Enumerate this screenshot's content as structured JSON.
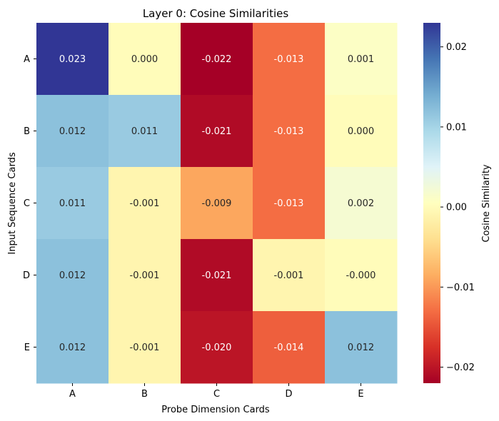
{
  "chart_data": {
    "type": "heatmap",
    "title": "Layer 0: Cosine Similarities",
    "xlabel": "Probe Dimension Cards",
    "ylabel": "Input Sequence Cards",
    "x_categories": [
      "A",
      "B",
      "C",
      "D",
      "E"
    ],
    "y_categories": [
      "A",
      "B",
      "C",
      "D",
      "E"
    ],
    "values": [
      [
        0.023,
        0.0,
        -0.022,
        -0.013,
        0.001
      ],
      [
        0.012,
        0.011,
        -0.021,
        -0.013,
        0.0
      ],
      [
        0.011,
        -0.001,
        -0.009,
        -0.013,
        0.002
      ],
      [
        0.012,
        -0.001,
        -0.021,
        -0.001,
        -0.0
      ],
      [
        0.012,
        -0.001,
        -0.02,
        -0.014,
        0.012
      ]
    ],
    "value_labels": [
      [
        "0.023",
        "0.000",
        "-0.022",
        "-0.013",
        "0.001"
      ],
      [
        "0.012",
        "0.011",
        "-0.021",
        "-0.013",
        "0.000"
      ],
      [
        "0.011",
        "-0.001",
        "-0.009",
        "-0.013",
        "0.002"
      ],
      [
        "0.012",
        "-0.001",
        "-0.021",
        "-0.001",
        "-0.000"
      ],
      [
        "0.012",
        "-0.001",
        "-0.020",
        "-0.014",
        "0.012"
      ]
    ],
    "colormap": "RdYlBu",
    "vmin": -0.022,
    "vmax": 0.023,
    "colorbar": {
      "label": "Cosine Similarity",
      "ticks": [
        0.02,
        0.01,
        0.0,
        -0.01,
        -0.02
      ],
      "tick_labels": [
        "0.02",
        "0.01",
        "0.00",
        "−0.01",
        "−0.02"
      ]
    },
    "grid": false,
    "legend": "none"
  }
}
